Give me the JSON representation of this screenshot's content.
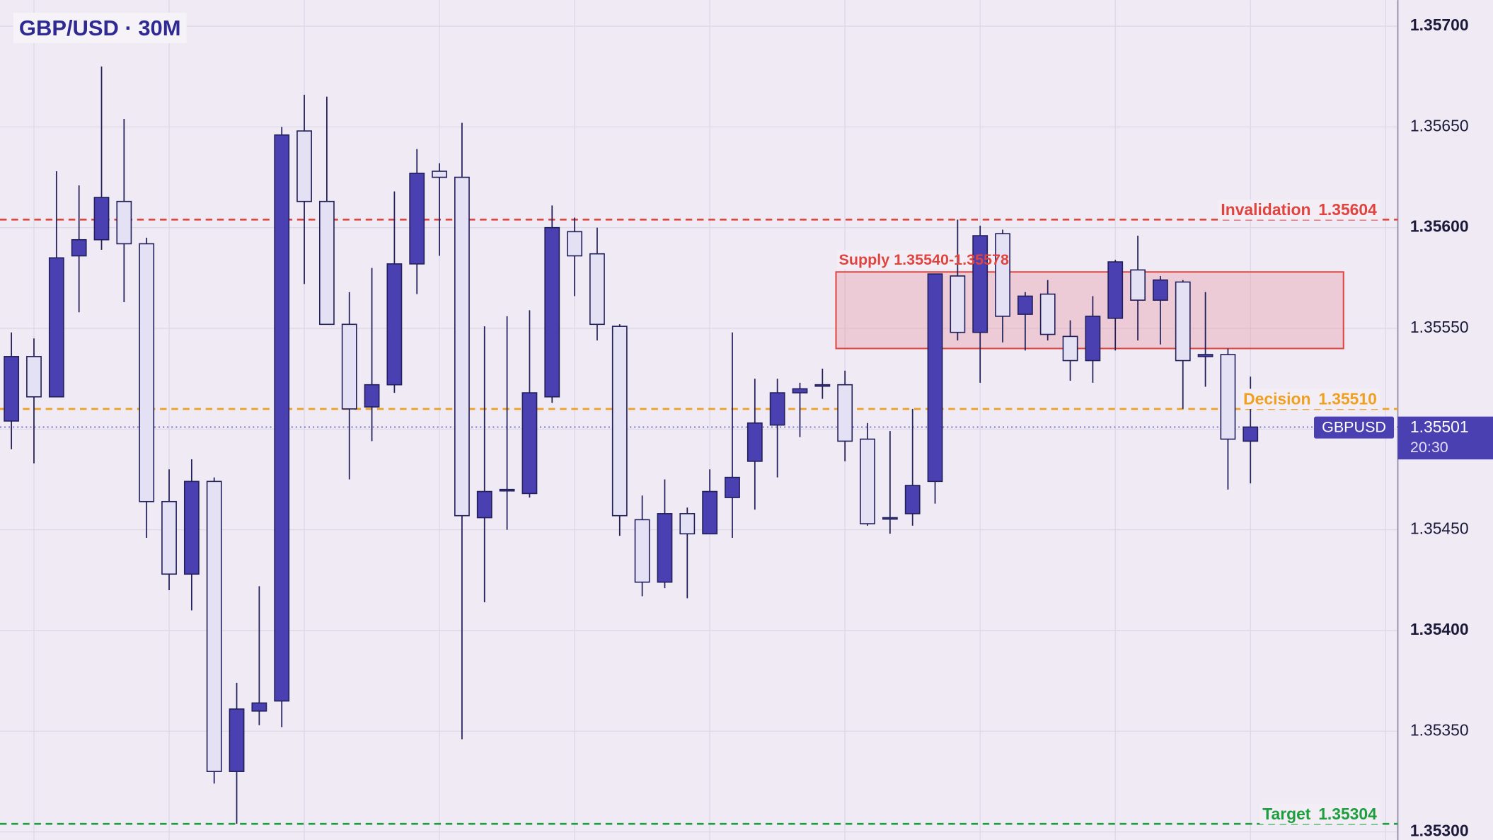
{
  "chart_data": {
    "type": "candlestick",
    "title": "GBP/USD · 30M",
    "open": [
      1.35504,
      1.35536,
      1.35516,
      1.35586,
      1.35594,
      1.35613,
      1.35592,
      1.35464,
      1.35428,
      1.35474,
      1.3533,
      1.3536,
      1.35365,
      1.35648,
      1.35613,
      1.35552,
      1.35511,
      1.35522,
      1.35582,
      1.35628,
      1.35625,
      1.35456,
      1.3547,
      1.35468,
      1.35516,
      1.35598,
      1.35587,
      1.35551,
      1.35455,
      1.35424,
      1.35458,
      1.35448,
      1.35466,
      1.35484,
      1.35502,
      1.35518,
      1.35522,
      1.35522,
      1.35495,
      1.35456,
      1.35458,
      1.35474,
      1.35576,
      1.35548,
      1.35597,
      1.35557,
      1.35567,
      1.35546,
      1.35534,
      1.35555,
      1.35579,
      1.35564,
      1.35573,
      1.35536,
      1.35537,
      1.35494
    ],
    "high": [
      1.35548,
      1.35545,
      1.35628,
      1.35621,
      1.3568,
      1.35654,
      1.35595,
      1.3548,
      1.35485,
      1.35476,
      1.35374,
      1.35422,
      1.3565,
      1.35666,
      1.35665,
      1.35568,
      1.3558,
      1.35618,
      1.35639,
      1.35632,
      1.35652,
      1.35551,
      1.35556,
      1.35559,
      1.35611,
      1.35605,
      1.356,
      1.35552,
      1.35467,
      1.35475,
      1.35461,
      1.3548,
      1.35548,
      1.35525,
      1.35525,
      1.35523,
      1.3553,
      1.35529,
      1.35503,
      1.35499,
      1.3551,
      1.35577,
      1.35604,
      1.35601,
      1.35599,
      1.35568,
      1.35574,
      1.35554,
      1.35566,
      1.35584,
      1.35596,
      1.35576,
      1.35574,
      1.35568,
      1.3554,
      1.35526
    ],
    "low": [
      1.3549,
      1.35483,
      1.35516,
      1.35558,
      1.35589,
      1.35563,
      1.35446,
      1.3542,
      1.3541,
      1.35324,
      1.35304,
      1.35353,
      1.35352,
      1.35572,
      1.35552,
      1.35475,
      1.35494,
      1.35518,
      1.35567,
      1.35586,
      1.35346,
      1.35414,
      1.3545,
      1.35466,
      1.35513,
      1.35566,
      1.35544,
      1.35447,
      1.35417,
      1.35421,
      1.35416,
      1.35448,
      1.35446,
      1.3546,
      1.35476,
      1.35496,
      1.35515,
      1.35484,
      1.35452,
      1.35448,
      1.35452,
      1.35463,
      1.35544,
      1.35523,
      1.35543,
      1.35539,
      1.35544,
      1.35524,
      1.35523,
      1.35539,
      1.35544,
      1.35542,
      1.3551,
      1.35521,
      1.3547,
      1.35473
    ],
    "close": [
      1.35536,
      1.35516,
      1.35585,
      1.35594,
      1.35615,
      1.35592,
      1.35464,
      1.35428,
      1.35474,
      1.3533,
      1.35361,
      1.35364,
      1.35646,
      1.35613,
      1.35552,
      1.3551,
      1.35522,
      1.35582,
      1.35627,
      1.35625,
      1.35457,
      1.35469,
      1.3547,
      1.35518,
      1.356,
      1.35586,
      1.35552,
      1.35457,
      1.35424,
      1.35458,
      1.35448,
      1.35469,
      1.35476,
      1.35503,
      1.35518,
      1.3552,
      1.35522,
      1.35494,
      1.35453,
      1.35456,
      1.35472,
      1.35577,
      1.35548,
      1.35596,
      1.35556,
      1.35566,
      1.35547,
      1.35534,
      1.35556,
      1.35583,
      1.35564,
      1.35574,
      1.35534,
      1.35537,
      1.35495,
      1.35501
    ],
    "up_color": "#4a40b2",
    "down_color": "#e4e1f4",
    "wick_color": "#22205a",
    "ylim": [
      1.35296,
      1.35713
    ],
    "yticks": [
      {
        "value": 1.353,
        "label": "1.35300"
      },
      {
        "value": 1.3535,
        "label": "1.35350"
      },
      {
        "value": 1.354,
        "label": "1.35400"
      },
      {
        "value": 1.3545,
        "label": "1.35450"
      },
      {
        "value": 1.355,
        "label": "1.35500"
      },
      {
        "value": 1.3555,
        "label": "1.35550"
      },
      {
        "value": 1.356,
        "label": "1.35600"
      },
      {
        "value": 1.3565,
        "label": "1.35650"
      },
      {
        "value": 1.357,
        "label": "1.35700"
      }
    ],
    "grid": true,
    "zone": {
      "label": "Supply 1.35540-1.35578",
      "low": 1.3554,
      "high": 1.35578,
      "color": "#e0443f"
    },
    "levels": [
      {
        "name": "Invalidation",
        "value": 1.35604,
        "value_label": "1.35604",
        "color": "#e0443f"
      },
      {
        "name": "Decision",
        "value": 1.3551,
        "value_label": "1.35510",
        "color": "#f0a020"
      },
      {
        "name": "Target",
        "value": 1.35304,
        "value_label": "1.35304",
        "color": "#1e9e3e"
      }
    ],
    "last_price": {
      "symbol": "GBPUSD",
      "value": 1.35501,
      "value_label": "1.35501",
      "time": "20:30",
      "color": "#4a40b2"
    }
  }
}
